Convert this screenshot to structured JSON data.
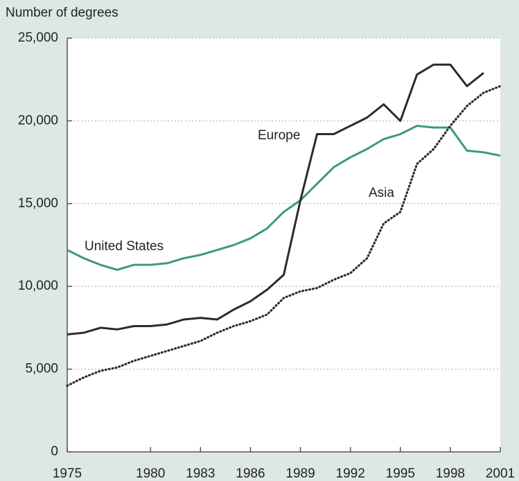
{
  "chart_data": {
    "type": "line",
    "y_axis_label": "Number of degrees",
    "x": [
      1975,
      1976,
      1977,
      1978,
      1979,
      1980,
      1981,
      1982,
      1983,
      1984,
      1985,
      1986,
      1987,
      1988,
      1989,
      1990,
      1991,
      1992,
      1993,
      1994,
      1995,
      1996,
      1997,
      1998,
      1999,
      2000,
      2001
    ],
    "series": [
      {
        "name": "United States",
        "color": "#3a9a7c",
        "dash": "solid",
        "values": [
          12200,
          11700,
          11300,
          11000,
          11300,
          11300,
          11400,
          11700,
          11900,
          12200,
          12500,
          12900,
          13500,
          14500,
          15200,
          16200,
          17200,
          17800,
          18300,
          18900,
          19200,
          19700,
          19600,
          19600,
          18200,
          18100,
          17900
        ]
      },
      {
        "name": "Europe",
        "color": "#2b2b2b",
        "dash": "solid",
        "values": [
          7100,
          7200,
          7500,
          7400,
          7600,
          7600,
          7700,
          8000,
          8100,
          8000,
          8600,
          9100,
          9800,
          10700,
          15200,
          19200,
          19200,
          19700,
          20200,
          21000,
          20000,
          22800,
          23400,
          23400,
          22100,
          22900,
          null
        ]
      },
      {
        "name": "Asia",
        "color": "#2b2b2b",
        "dash": "dotted",
        "values": [
          4000,
          4500,
          4900,
          5100,
          5500,
          5800,
          6100,
          6400,
          6700,
          7200,
          7600,
          7900,
          8300,
          9300,
          9700,
          9900,
          10400,
          10800,
          11700,
          13800,
          14500,
          17400,
          18300,
          19700,
          20900,
          21700,
          22100
        ]
      }
    ],
    "xlim": [
      1975,
      2001
    ],
    "xticks": [
      1975,
      1980,
      1983,
      1986,
      1989,
      1992,
      1995,
      1998,
      2001
    ],
    "ylim": [
      0,
      25000
    ],
    "yticks": [
      0,
      {
        "value": 5000,
        "label": "5,000"
      },
      {
        "value": 10000,
        "label": "10,000"
      },
      {
        "value": 15000,
        "label": "15,000"
      },
      {
        "value": 20000,
        "label": "20,000"
      },
      {
        "value": 25000,
        "label": "25,000"
      }
    ],
    "grid": true
  }
}
